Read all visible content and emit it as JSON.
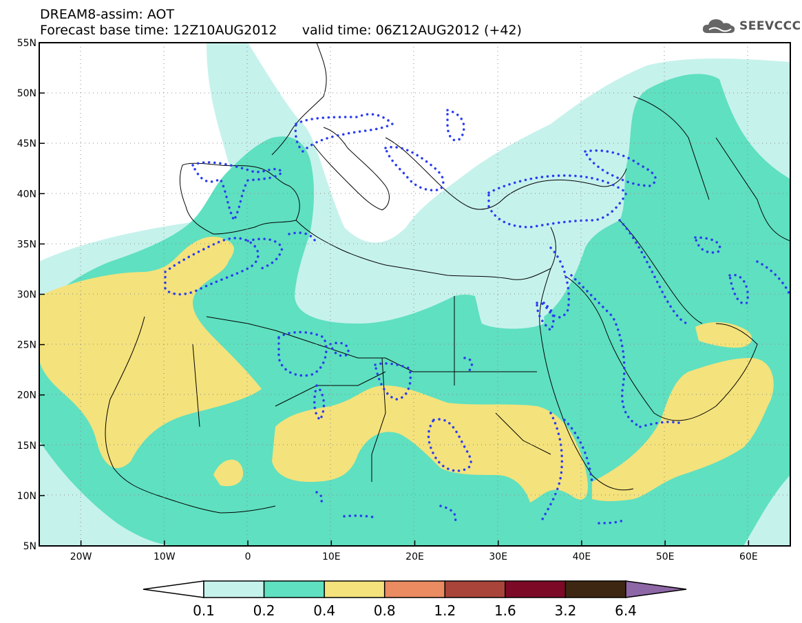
{
  "header": {
    "model_title": "DREAM8-assim: AOT",
    "base_time_label": "Forecast base time: 12Z10AUG2012",
    "valid_time_label": "valid time: 06Z12AUG2012 (+42)",
    "logo_text": "SEEVCCC"
  },
  "map": {
    "lon_range": [
      -25,
      65
    ],
    "lat_range": [
      5,
      55
    ],
    "lon_ticks": [
      "20W",
      "10W",
      "0",
      "10E",
      "20E",
      "30E",
      "40E",
      "50E",
      "60E"
    ],
    "lat_ticks": [
      "5N",
      "10N",
      "15N",
      "20N",
      "25N",
      "30N",
      "35N",
      "40N",
      "45N",
      "50N",
      "55N"
    ]
  },
  "colorbar": {
    "levels": [
      "0.1",
      "0.2",
      "0.4",
      "0.8",
      "1.2",
      "1.6",
      "3.2",
      "6.4"
    ],
    "colors": [
      "#ffffff",
      "#c6f2ec",
      "#5fe0c0",
      "#f4e27c",
      "#ea8b62",
      "#a9443a",
      "#7c0a26",
      "#3e2712",
      "#8e67a6"
    ]
  },
  "colors": {
    "aot_0_1": "#c6f2ec",
    "aot_0_2": "#5fe0c0",
    "aot_0_4": "#f4e27c",
    "dust_contour": "#2a3cf0",
    "coastline": "#000000"
  }
}
